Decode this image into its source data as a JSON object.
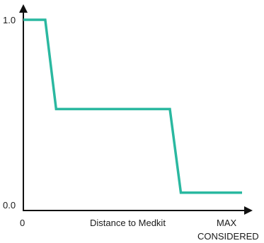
{
  "chart_data": {
    "type": "line",
    "xlabel": "Distance to Medkit",
    "x_tick_labels": [
      "0",
      "MAX",
      "CONSIDERED"
    ],
    "y_tick_labels": [
      "1.0",
      "0.0"
    ],
    "xlim": [
      0,
      1
    ],
    "ylim": [
      0,
      1
    ],
    "grid": false,
    "line_color": "#2ab8a0",
    "series": [
      {
        "x": [
          0.0,
          0.1,
          0.15,
          0.67,
          0.72,
          1.0
        ],
        "y": [
          1.0,
          1.0,
          0.53,
          0.53,
          0.09,
          0.09
        ]
      }
    ]
  }
}
